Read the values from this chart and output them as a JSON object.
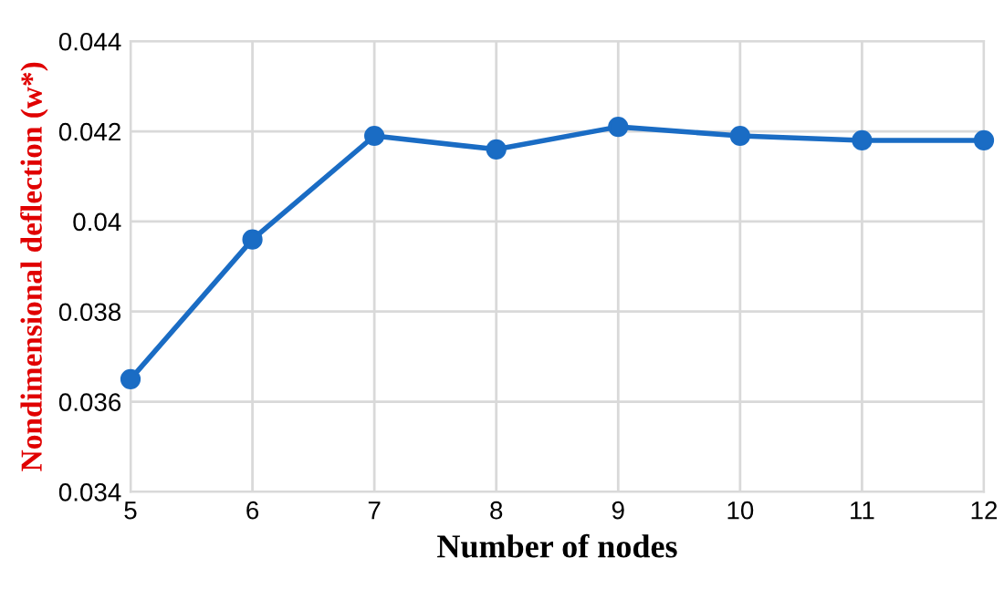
{
  "chart_data": {
    "type": "line",
    "xlabel": "Number of nodes",
    "ylabel": "Nondimensional deflection (w*)",
    "x": [
      5,
      6,
      7,
      8,
      9,
      10,
      11,
      12
    ],
    "series": [
      {
        "color": "#1a6cc4",
        "values": [
          0.0365,
          0.0396,
          0.0419,
          0.0416,
          0.0421,
          0.0419,
          0.0418,
          0.0418
        ]
      }
    ],
    "xlim": [
      5,
      12
    ],
    "xticks": [
      5,
      6,
      7,
      8,
      9,
      10,
      11,
      12
    ],
    "ylim": [
      0.034,
      0.044
    ],
    "yticks": [
      0.034,
      0.036,
      0.038,
      0.04,
      0.042,
      0.044
    ],
    "grid": true,
    "marker": "circle",
    "line_style": "solid",
    "legend": false
  }
}
